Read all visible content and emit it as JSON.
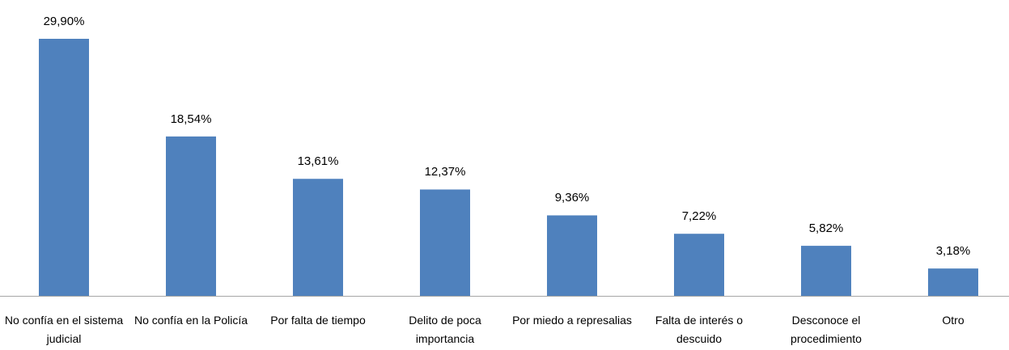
{
  "chart_data": {
    "type": "bar",
    "categories": [
      "No confía en el sistema judicial",
      "No confía en la Policía",
      "Por falta de tiempo",
      "Delito de poca importancia",
      "Por miedo a represalias",
      "Falta de interés o descuido",
      "Desconoce el procedimiento",
      "Otro"
    ],
    "values": [
      29.9,
      18.54,
      13.61,
      12.37,
      9.36,
      7.22,
      5.82,
      3.18
    ],
    "value_labels": [
      "29,90%",
      "18,54%",
      "13,61%",
      "12,37%",
      "9,36%",
      "7,22%",
      "5,82%",
      "3,18%"
    ],
    "color": "#4f81bd"
  }
}
